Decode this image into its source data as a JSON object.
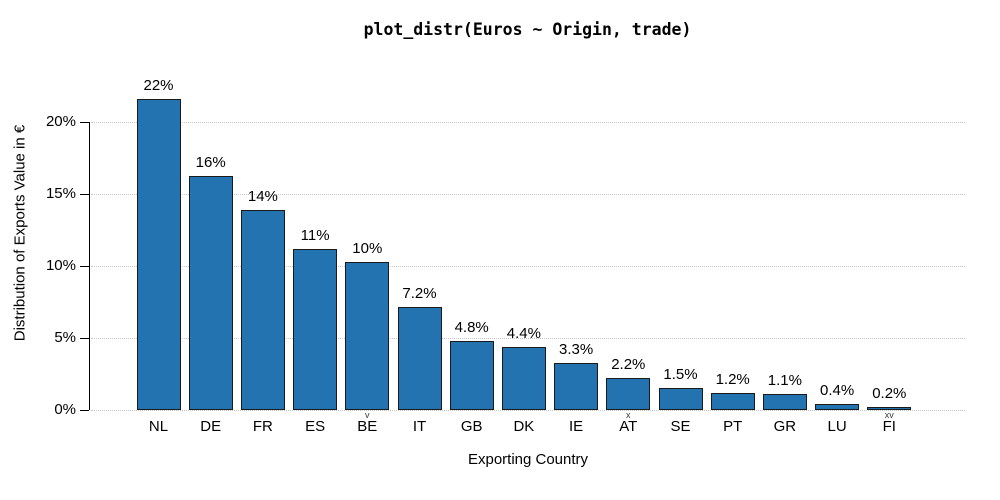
{
  "title": "plot_distr(Euros ~ Origin, trade)",
  "colors": {
    "bar_fill": "#2273b0",
    "bar_border": "#1a1a1a",
    "gridline": "#c6c6c6",
    "axis": "#000000",
    "text": "#000000",
    "rug_mark": "#3a3a3a"
  },
  "chart_data": {
    "type": "bar",
    "title": "plot_distr(Euros ~ Origin, trade)",
    "xlabel": "Exporting Country",
    "ylabel": "Distribution of Exports Value in €",
    "ylim": [
      0,
      22.5
    ],
    "yticks": [
      0,
      5,
      10,
      15,
      20
    ],
    "ytick_labels": [
      "0%",
      "5%",
      "10%",
      "15%",
      "20%"
    ],
    "grid": "horizontal dotted lines at each y tick, legend absent",
    "categories": [
      "NL",
      "DE",
      "FR",
      "ES",
      "BE",
      "IT",
      "GB",
      "DK",
      "IE",
      "AT",
      "SE",
      "PT",
      "GR",
      "LU",
      "FI"
    ],
    "values": [
      21.6,
      16.3,
      13.9,
      11.2,
      10.3,
      7.2,
      4.8,
      4.4,
      3.3,
      2.2,
      1.5,
      1.2,
      1.1,
      0.4,
      0.2
    ],
    "bar_labels": [
      "22%",
      "16%",
      "14%",
      "11%",
      "10%",
      "7.2%",
      "4.8%",
      "4.4%",
      "3.3%",
      "2.2%",
      "1.5%",
      "1.2%",
      "1.1%",
      "0.4%",
      "0.2%"
    ],
    "rug_marks": {
      "BE": "v",
      "AT": "x",
      "FI": "xv"
    }
  }
}
